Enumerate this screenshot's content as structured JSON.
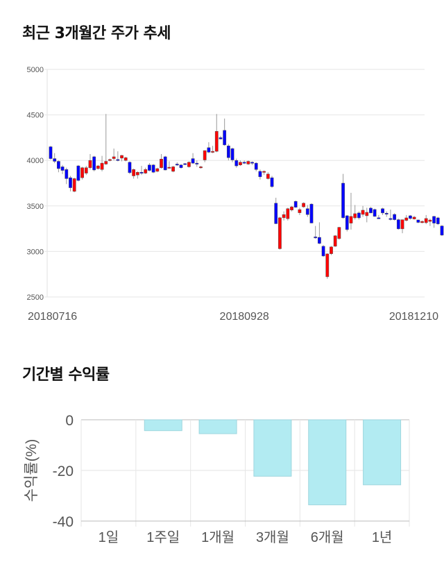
{
  "price_section": {
    "title": "최근 3개월간 주가 추세"
  },
  "returns_section": {
    "title": "기간별 수익률"
  },
  "chart_data": [
    {
      "type": "candlestick",
      "title": "최근 3개월간 주가 추세",
      "ylim": [
        2500,
        5000
      ],
      "yticks": [
        "5000",
        "4500",
        "4000",
        "3500",
        "3000",
        "2500"
      ],
      "ytick_values": [
        5000,
        4500,
        4000,
        3500,
        3000,
        2500
      ],
      "xtick_labels": [
        "20180716",
        "20180928",
        "20181210"
      ],
      "xtick_indices": [
        0,
        49,
        99
      ],
      "up_color": "#ff0000",
      "down_color": "#0000ff",
      "ohlc": [
        [
          4150,
          4160,
          4010,
          4020
        ],
        [
          4020,
          4080,
          3970,
          3990
        ],
        [
          3990,
          4000,
          3870,
          3910
        ],
        [
          3930,
          3950,
          3850,
          3890
        ],
        [
          3900,
          3920,
          3740,
          3800
        ],
        [
          3810,
          3830,
          3660,
          3700
        ],
        [
          3660,
          3810,
          3650,
          3800
        ],
        [
          3940,
          3950,
          3770,
          3780
        ],
        [
          3810,
          3930,
          3790,
          3920
        ],
        [
          3860,
          3940,
          3840,
          3920
        ],
        [
          3920,
          4070,
          3900,
          4000
        ],
        [
          4040,
          4050,
          3880,
          3895
        ],
        [
          3910,
          3950,
          3900,
          3940
        ],
        [
          3900,
          4050,
          3880,
          3970
        ],
        [
          3960,
          4510,
          3950,
          3990
        ],
        [
          4000,
          4020,
          3990,
          4010
        ],
        [
          4020,
          4130,
          4000,
          4040
        ],
        [
          4010,
          4100,
          3990,
          4000
        ],
        [
          4025,
          4060,
          3990,
          4055
        ],
        [
          4000,
          4040,
          3990,
          4030
        ],
        [
          3980,
          3990,
          3850,
          3865
        ],
        [
          3830,
          3910,
          3800,
          3900
        ],
        [
          3840,
          3880,
          3800,
          3870
        ],
        [
          3870,
          3940,
          3840,
          3865
        ],
        [
          3860,
          3920,
          3850,
          3900
        ],
        [
          3950,
          3970,
          3880,
          3890
        ],
        [
          3950,
          3960,
          3860,
          3870
        ],
        [
          3880,
          3920,
          3870,
          3910
        ],
        [
          3920,
          4070,
          3910,
          4015
        ],
        [
          4040,
          4050,
          3890,
          3895
        ],
        [
          3915,
          3990,
          3910,
          3925
        ],
        [
          3880,
          3940,
          3870,
          3930
        ],
        [
          3960,
          3980,
          3940,
          3950
        ],
        [
          3950,
          3960,
          3910,
          3920
        ],
        [
          3965,
          3970,
          3950,
          3960
        ],
        [
          3930,
          3990,
          3920,
          3980
        ],
        [
          4020,
          4080,
          3960,
          3970
        ],
        [
          3970,
          4000,
          3930,
          3960
        ],
        [
          3920,
          3940,
          3910,
          3930
        ],
        [
          4005,
          4110,
          3980,
          4108
        ],
        [
          4140,
          4200,
          4080,
          4090
        ],
        [
          4090,
          4160,
          4080,
          4100
        ],
        [
          4100,
          4510,
          4090,
          4320
        ],
        [
          4250,
          4270,
          4230,
          4235
        ],
        [
          4330,
          4460,
          4160,
          4170
        ],
        [
          4160,
          4180,
          4000,
          4030
        ],
        [
          4130,
          4140,
          3980,
          4005
        ],
        [
          4000,
          4020,
          3920,
          3940
        ],
        [
          3950,
          4000,
          3940,
          3980
        ],
        [
          3980,
          4000,
          3960,
          3970
        ],
        [
          3960,
          4000,
          3950,
          3990
        ],
        [
          3980,
          3990,
          3950,
          3970
        ],
        [
          3970,
          3980,
          3880,
          3900
        ],
        [
          3880,
          3900,
          3790,
          3820
        ],
        [
          3870,
          3890,
          3840,
          3880
        ],
        [
          3800,
          3870,
          3790,
          3850
        ],
        [
          3810,
          3830,
          3700,
          3712
        ],
        [
          3530,
          3590,
          3300,
          3305
        ],
        [
          3030,
          3380,
          3020,
          3370
        ],
        [
          3370,
          3440,
          3340,
          3405
        ],
        [
          3360,
          3480,
          3340,
          3470
        ],
        [
          3455,
          3500,
          3440,
          3490
        ],
        [
          3550,
          3560,
          3480,
          3485
        ],
        [
          3425,
          3480,
          3400,
          3460
        ],
        [
          3490,
          3540,
          3480,
          3530
        ],
        [
          3470,
          3510,
          3380,
          3405
        ],
        [
          3520,
          3530,
          3310,
          3312
        ],
        [
          3160,
          3280,
          3140,
          3155
        ],
        [
          3155,
          3320,
          3080,
          3088
        ],
        [
          3057,
          3070,
          2940,
          2950
        ],
        [
          2722,
          2980,
          2700,
          2973
        ],
        [
          2975,
          3060,
          2960,
          3050
        ],
        [
          3057,
          3180,
          3050,
          3172
        ],
        [
          3141,
          3270,
          3130,
          3265
        ],
        [
          3750,
          3852,
          3360,
          3370
        ],
        [
          3392,
          3400,
          3220,
          3240
        ],
        [
          3311,
          3644,
          3240,
          3385
        ],
        [
          3369,
          3510,
          3350,
          3415
        ],
        [
          3423,
          3440,
          3350,
          3369
        ],
        [
          3407,
          3500,
          3380,
          3453
        ],
        [
          3392,
          3480,
          3320,
          3430
        ],
        [
          3476,
          3490,
          3420,
          3423
        ],
        [
          3461,
          3470,
          3380,
          3385
        ],
        [
          3370,
          3400,
          3360,
          3368
        ],
        [
          3470,
          3480,
          3400,
          3423
        ],
        [
          3420,
          3440,
          3380,
          3416
        ],
        [
          3362,
          3460,
          3340,
          3360
        ],
        [
          3407,
          3420,
          3340,
          3349
        ],
        [
          3349,
          3360,
          3240,
          3248
        ],
        [
          3248,
          3350,
          3200,
          3349
        ],
        [
          3341,
          3400,
          3330,
          3369
        ],
        [
          3392,
          3400,
          3350,
          3362
        ],
        [
          3357,
          3390,
          3350,
          3377
        ],
        [
          3346,
          3350,
          3310,
          3319
        ],
        [
          3316,
          3340,
          3310,
          3330
        ],
        [
          3316,
          3400,
          3300,
          3362
        ],
        [
          3330,
          3360,
          3280,
          3345
        ],
        [
          3385,
          3390,
          3260,
          3311
        ],
        [
          3369,
          3380,
          3290,
          3303
        ],
        [
          3280,
          3290,
          3170,
          3179
        ]
      ]
    },
    {
      "type": "bar",
      "title": "기간별 수익률",
      "ylabel": "수익률(%)",
      "categories": [
        "1일",
        "1주일",
        "1개월",
        "3개월",
        "6개월",
        "1년"
      ],
      "values": [
        0,
        -4.3,
        -5.5,
        -22.3,
        -33.6,
        -25.7
      ],
      "ylim": [
        -40,
        0
      ],
      "yticks": [
        "0",
        "-20",
        "-40"
      ],
      "ytick_values": [
        0,
        -20,
        -40
      ],
      "bar_color": "#b2ebf2"
    }
  ]
}
